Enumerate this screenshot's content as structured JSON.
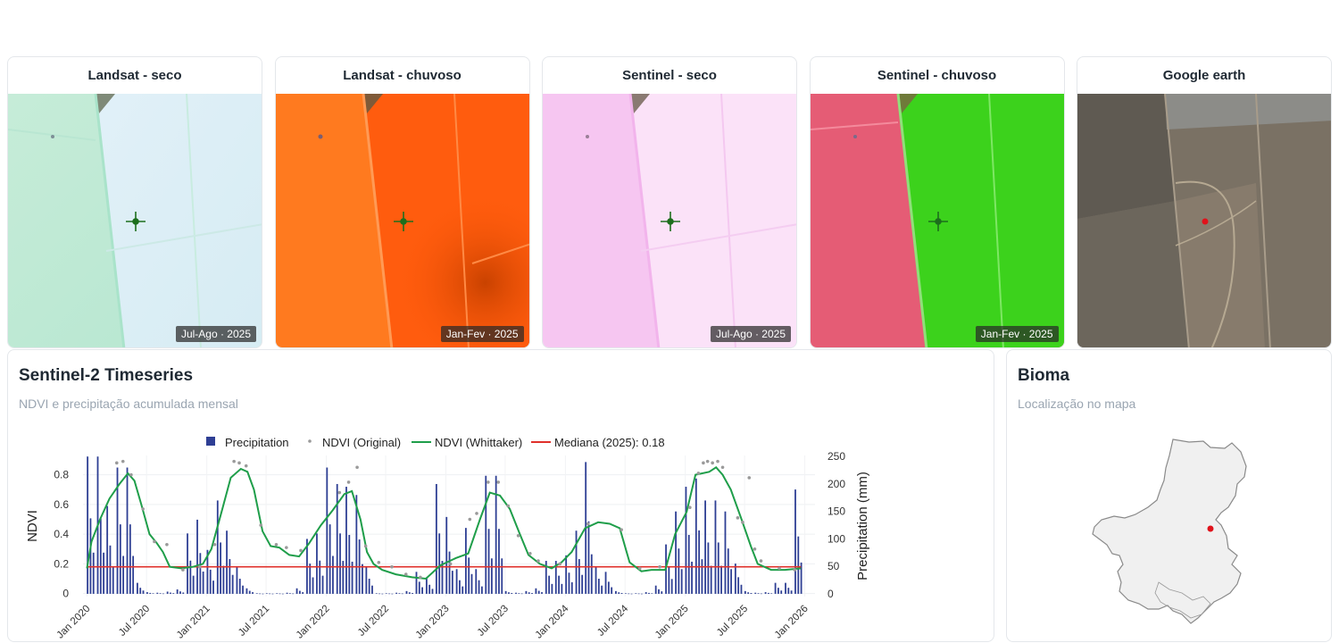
{
  "images": [
    {
      "title": "Landsat - seco",
      "badge": "Jul-Ago · 2025",
      "style": "landsat-dry",
      "colors": [
        "#bfe9d6",
        "#dceef5"
      ]
    },
    {
      "title": "Landsat - chuvoso",
      "badge": "Jan-Fev · 2025",
      "style": "landsat-wet",
      "colors": [
        "#ff7a1a",
        "#ff5a0a"
      ]
    },
    {
      "title": "Sentinel - seco",
      "badge": "Jul-Ago · 2025",
      "style": "sentinel-dry",
      "colors": [
        "#f7c7f1",
        "#fbe0f8"
      ]
    },
    {
      "title": "Sentinel - chuvoso",
      "badge": "Jan-Fev · 2025",
      "style": "sentinel-wet",
      "colors": [
        "#e85a72",
        "#3fd41a"
      ]
    },
    {
      "title": "Google earth",
      "badge": "",
      "style": "google",
      "colors": [
        "#6f6658",
        "#8a8070"
      ]
    }
  ],
  "marker_icons": [
    "crosshair-icon",
    "crosshair-icon",
    "crosshair-icon",
    "crosshair-icon",
    "location-dot-icon"
  ],
  "timeseries": {
    "title": "Sentinel-2 Timeseries",
    "subtitle": "NDVI e precipitação acumulada mensal"
  },
  "bioma": {
    "title": "Bioma",
    "subtitle": "Localização no mapa"
  },
  "chart_data": {
    "type": "line",
    "legend": {
      "position": "top-center",
      "entries": [
        "Precipitation",
        "NDVI (Original)",
        "NDVI (Whittaker)",
        "Mediana (2025): 0.18"
      ]
    },
    "colors": {
      "precip": "#2e3f94",
      "ndvi_original": "#9a9a9a",
      "ndvi_whittaker": "#1f9e4a",
      "median": "#e0312b"
    },
    "ylabel": "NDVI",
    "y2label": "Precipitation (mm)",
    "ylim": [
      -0.02,
      0.93
    ],
    "y2lim": [
      -5,
      252
    ],
    "yticks": [
      0,
      0.2,
      0.4,
      0.6,
      0.8
    ],
    "y2ticks": [
      0,
      50,
      100,
      150,
      200,
      250
    ],
    "xlim": [
      "2019-12-20",
      "2026-02-01"
    ],
    "xticks": [
      "Jan 2020",
      "Jul 2020",
      "Jan 2021",
      "Jul 2021",
      "Jan 2022",
      "Jul 2022",
      "Jan 2023",
      "Jul 2023",
      "Jan 2024",
      "Jul 2024",
      "Jan 2025",
      "Jul 2025",
      "Jan 2026"
    ],
    "xtick_dates": [
      "2020-01-01",
      "2020-07-01",
      "2021-01-01",
      "2021-07-01",
      "2022-01-01",
      "2022-07-01",
      "2023-01-01",
      "2023-07-01",
      "2024-01-01",
      "2024-07-01",
      "2025-01-01",
      "2025-07-01",
      "2026-01-01"
    ],
    "median": 0.18,
    "ndvi_whittaker": [
      [
        "2020-01-01",
        0.17
      ],
      [
        "2020-01-15",
        0.35
      ],
      [
        "2020-02-10",
        0.5
      ],
      [
        "2020-03-10",
        0.64
      ],
      [
        "2020-04-10",
        0.74
      ],
      [
        "2020-05-05",
        0.81
      ],
      [
        "2020-05-25",
        0.76
      ],
      [
        "2020-06-15",
        0.6
      ],
      [
        "2020-07-10",
        0.4
      ],
      [
        "2020-08-01",
        0.34
      ],
      [
        "2020-08-20",
        0.28
      ],
      [
        "2020-09-10",
        0.18
      ],
      [
        "2020-10-15",
        0.17
      ],
      [
        "2020-11-20",
        0.18
      ],
      [
        "2020-12-20",
        0.2
      ],
      [
        "2021-01-15",
        0.3
      ],
      [
        "2021-02-15",
        0.55
      ],
      [
        "2021-03-15",
        0.78
      ],
      [
        "2021-04-15",
        0.84
      ],
      [
        "2021-05-05",
        0.82
      ],
      [
        "2021-05-25",
        0.7
      ],
      [
        "2021-06-20",
        0.42
      ],
      [
        "2021-07-15",
        0.32
      ],
      [
        "2021-08-10",
        0.31
      ],
      [
        "2021-09-10",
        0.26
      ],
      [
        "2021-10-10",
        0.25
      ],
      [
        "2021-11-10",
        0.34
      ],
      [
        "2021-12-15",
        0.46
      ],
      [
        "2022-01-20",
        0.56
      ],
      [
        "2022-02-25",
        0.67
      ],
      [
        "2022-03-20",
        0.69
      ],
      [
        "2022-04-15",
        0.5
      ],
      [
        "2022-05-05",
        0.28
      ],
      [
        "2022-05-25",
        0.2
      ],
      [
        "2022-06-20",
        0.16
      ],
      [
        "2022-08-01",
        0.13
      ],
      [
        "2022-09-20",
        0.11
      ],
      [
        "2022-11-01",
        0.1
      ],
      [
        "2022-12-15",
        0.19
      ],
      [
        "2023-02-01",
        0.24
      ],
      [
        "2023-03-10",
        0.27
      ],
      [
        "2023-04-15",
        0.5
      ],
      [
        "2023-05-15",
        0.68
      ],
      [
        "2023-06-15",
        0.66
      ],
      [
        "2023-07-15",
        0.57
      ],
      [
        "2023-08-15",
        0.4
      ],
      [
        "2023-09-10",
        0.26
      ],
      [
        "2023-10-15",
        0.2
      ],
      [
        "2023-11-20",
        0.17
      ],
      [
        "2023-12-20",
        0.21
      ],
      [
        "2024-01-20",
        0.28
      ],
      [
        "2024-03-01",
        0.44
      ],
      [
        "2024-04-10",
        0.48
      ],
      [
        "2024-05-15",
        0.47
      ],
      [
        "2024-06-15",
        0.44
      ],
      [
        "2024-07-15",
        0.21
      ],
      [
        "2024-08-20",
        0.15
      ],
      [
        "2024-09-20",
        0.16
      ],
      [
        "2024-11-01",
        0.16
      ],
      [
        "2024-12-01",
        0.4
      ],
      [
        "2025-01-05",
        0.55
      ],
      [
        "2025-02-01",
        0.8
      ],
      [
        "2025-03-15",
        0.82
      ],
      [
        "2025-04-05",
        0.85
      ],
      [
        "2025-04-25",
        0.8
      ],
      [
        "2025-05-20",
        0.7
      ],
      [
        "2025-06-20",
        0.51
      ],
      [
        "2025-07-20",
        0.32
      ],
      [
        "2025-08-10",
        0.2
      ],
      [
        "2025-09-20",
        0.16
      ],
      [
        "2025-11-01",
        0.16
      ],
      [
        "2025-12-20",
        0.17
      ]
    ],
    "ndvi_original": [
      [
        "2020-04-01",
        0.88
      ],
      [
        "2020-04-20",
        0.89
      ],
      [
        "2020-05-15",
        0.8
      ],
      [
        "2020-06-20",
        0.57
      ],
      [
        "2020-07-25",
        0.35
      ],
      [
        "2020-09-01",
        0.33
      ],
      [
        "2020-10-20",
        0.16
      ],
      [
        "2020-12-10",
        0.18
      ],
      [
        "2021-01-25",
        0.33
      ],
      [
        "2021-03-25",
        0.89
      ],
      [
        "2021-04-10",
        0.88
      ],
      [
        "2021-05-01",
        0.86
      ],
      [
        "2021-06-15",
        0.46
      ],
      [
        "2021-08-01",
        0.33
      ],
      [
        "2021-09-01",
        0.31
      ],
      [
        "2021-10-15",
        0.29
      ],
      [
        "2022-02-10",
        0.68
      ],
      [
        "2022-03-10",
        0.75
      ],
      [
        "2022-04-05",
        0.85
      ],
      [
        "2022-05-01",
        0.32
      ],
      [
        "2022-06-10",
        0.21
      ],
      [
        "2022-07-20",
        0.18
      ],
      [
        "2022-09-01",
        0.13
      ],
      [
        "2022-10-15",
        0.11
      ],
      [
        "2023-01-15",
        0.2
      ],
      [
        "2023-03-15",
        0.5
      ],
      [
        "2023-04-05",
        0.54
      ],
      [
        "2023-05-10",
        0.75
      ],
      [
        "2023-06-10",
        0.75
      ],
      [
        "2023-07-10",
        0.59
      ],
      [
        "2023-08-10",
        0.39
      ],
      [
        "2023-09-15",
        0.27
      ],
      [
        "2023-10-10",
        0.22
      ],
      [
        "2023-12-15",
        0.2
      ],
      [
        "2024-03-10",
        0.47
      ],
      [
        "2024-06-20",
        0.43
      ],
      [
        "2024-08-15",
        0.17
      ],
      [
        "2024-10-15",
        0.18
      ],
      [
        "2025-01-15",
        0.58
      ],
      [
        "2025-02-10",
        0.81
      ],
      [
        "2025-02-25",
        0.88
      ],
      [
        "2025-03-10",
        0.89
      ],
      [
        "2025-03-25",
        0.88
      ],
      [
        "2025-04-10",
        0.89
      ],
      [
        "2025-04-25",
        0.85
      ],
      [
        "2025-06-10",
        0.51
      ],
      [
        "2025-06-25",
        0.48
      ],
      [
        "2025-07-15",
        0.78
      ],
      [
        "2025-08-01",
        0.3
      ],
      [
        "2025-08-20",
        0.22
      ],
      [
        "2025-10-15",
        0.17
      ],
      [
        "2025-12-01",
        0.16
      ]
    ],
    "precipitation": [
      [
        "2020-01-01",
        250
      ],
      [
        "2020-02-01",
        250
      ],
      [
        "2020-03-01",
        160
      ],
      [
        "2020-04-01",
        230
      ],
      [
        "2020-05-01",
        230
      ],
      [
        "2020-06-01",
        20
      ],
      [
        "2020-07-01",
        3
      ],
      [
        "2020-08-01",
        2
      ],
      [
        "2020-09-01",
        4
      ],
      [
        "2020-10-01",
        8
      ],
      [
        "2020-11-01",
        110
      ],
      [
        "2020-12-01",
        135
      ],
      [
        "2021-01-01",
        80
      ],
      [
        "2021-02-01",
        170
      ],
      [
        "2021-03-01",
        115
      ],
      [
        "2021-04-01",
        50
      ],
      [
        "2021-05-01",
        10
      ],
      [
        "2021-06-01",
        1
      ],
      [
        "2021-07-01",
        1
      ],
      [
        "2021-08-01",
        1
      ],
      [
        "2021-09-01",
        2
      ],
      [
        "2021-10-01",
        10
      ],
      [
        "2021-11-01",
        100
      ],
      [
        "2021-12-01",
        110
      ],
      [
        "2022-01-01",
        230
      ],
      [
        "2022-02-01",
        200
      ],
      [
        "2022-03-01",
        195
      ],
      [
        "2022-04-01",
        180
      ],
      [
        "2022-05-01",
        50
      ],
      [
        "2022-06-01",
        1
      ],
      [
        "2022-07-01",
        1
      ],
      [
        "2022-08-01",
        2
      ],
      [
        "2022-09-01",
        5
      ],
      [
        "2022-10-01",
        40
      ],
      [
        "2022-11-01",
        30
      ],
      [
        "2022-12-01",
        200
      ],
      [
        "2023-01-01",
        140
      ],
      [
        "2023-02-01",
        45
      ],
      [
        "2023-03-01",
        120
      ],
      [
        "2023-04-01",
        45
      ],
      [
        "2023-05-01",
        215
      ],
      [
        "2023-06-01",
        215
      ],
      [
        "2023-07-01",
        5
      ],
      [
        "2023-08-01",
        2
      ],
      [
        "2023-09-01",
        5
      ],
      [
        "2023-10-01",
        10
      ],
      [
        "2023-11-01",
        60
      ],
      [
        "2023-12-01",
        60
      ],
      [
        "2024-01-01",
        70
      ],
      [
        "2024-02-01",
        115
      ],
      [
        "2024-03-01",
        240
      ],
      [
        "2024-04-01",
        50
      ],
      [
        "2024-05-01",
        40
      ],
      [
        "2024-06-01",
        5
      ],
      [
        "2024-07-01",
        1
      ],
      [
        "2024-08-01",
        1
      ],
      [
        "2024-09-01",
        3
      ],
      [
        "2024-10-01",
        15
      ],
      [
        "2024-11-01",
        90
      ],
      [
        "2024-12-01",
        150
      ],
      [
        "2025-01-01",
        195
      ],
      [
        "2025-02-01",
        210
      ],
      [
        "2025-03-01",
        170
      ],
      [
        "2025-04-01",
        170
      ],
      [
        "2025-05-01",
        150
      ],
      [
        "2025-06-01",
        55
      ],
      [
        "2025-07-01",
        5
      ],
      [
        "2025-08-01",
        2
      ],
      [
        "2025-09-01",
        3
      ],
      [
        "2025-10-01",
        20
      ],
      [
        "2025-11-01",
        20
      ],
      [
        "2025-12-01",
        190
      ]
    ]
  }
}
